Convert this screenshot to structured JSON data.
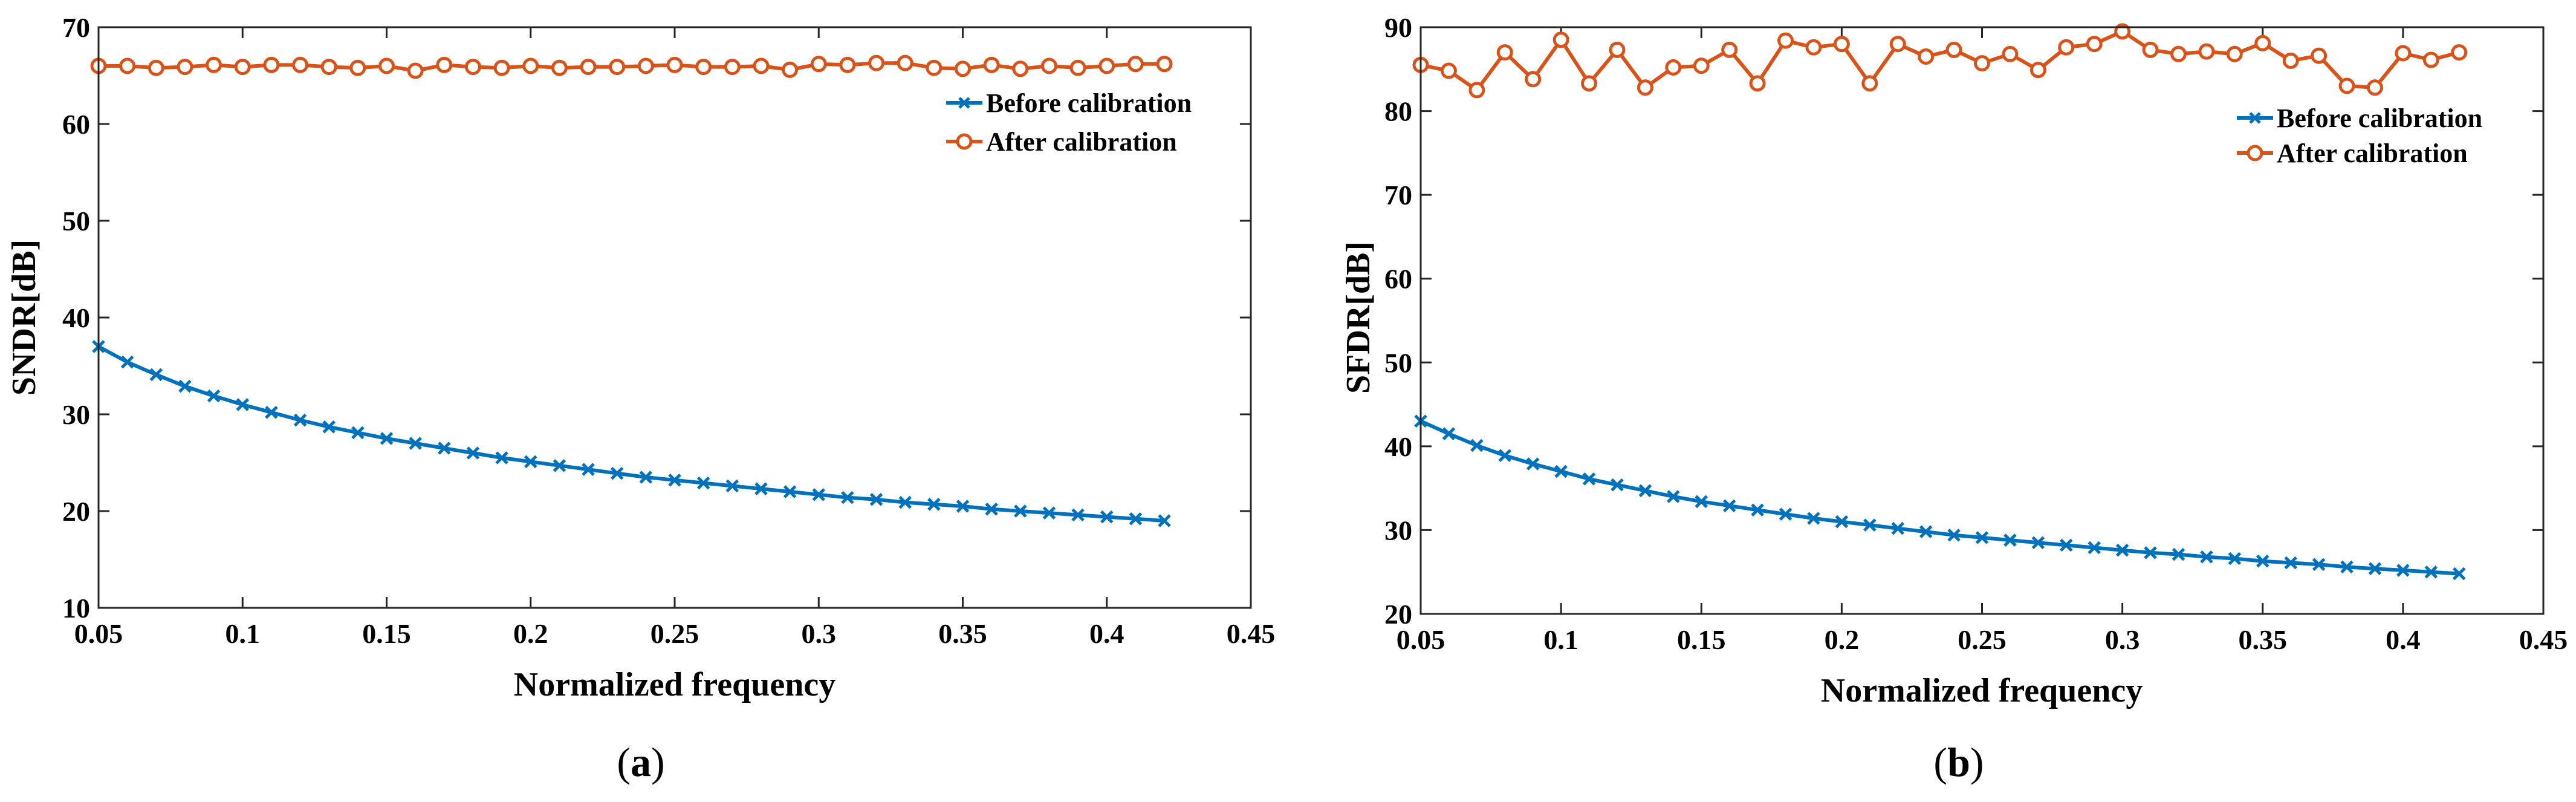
{
  "chart_data": [
    {
      "type": "line",
      "panel": "a",
      "caption": "a",
      "xlabel": "Normalized frequency",
      "ylabel": "SNDR[dB]",
      "xlim": [
        0.05,
        0.45
      ],
      "ylim": [
        10,
        70
      ],
      "xticks": [
        0.05,
        0.1,
        0.15,
        0.2,
        0.25,
        0.3,
        0.35,
        0.4,
        0.45
      ],
      "xtick_labels": [
        "0.05",
        "0.1",
        "0.15",
        "0.2",
        "0.25",
        "0.3",
        "0.35",
        "0.4",
        "0.45"
      ],
      "yticks": [
        10,
        20,
        30,
        40,
        50,
        60,
        70
      ],
      "ytick_labels": [
        "10",
        "20",
        "30",
        "40",
        "50",
        "60",
        "70"
      ],
      "legend_position": "top-right",
      "x": [
        0.05,
        0.06,
        0.07,
        0.08,
        0.09,
        0.1,
        0.11,
        0.12,
        0.13,
        0.14,
        0.15,
        0.16,
        0.17,
        0.18,
        0.19,
        0.2,
        0.21,
        0.22,
        0.23,
        0.24,
        0.25,
        0.26,
        0.27,
        0.28,
        0.29,
        0.3,
        0.31,
        0.32,
        0.33,
        0.34,
        0.35,
        0.36,
        0.37,
        0.38,
        0.39,
        0.4,
        0.41,
        0.42
      ],
      "series": [
        {
          "name": "Before calibration",
          "color": "#0072BD",
          "marker": "x",
          "values": [
            37.0,
            35.4,
            34.1,
            32.9,
            31.9,
            31.0,
            30.2,
            29.4,
            28.7,
            28.1,
            27.5,
            27.0,
            26.5,
            26.0,
            25.5,
            25.1,
            24.7,
            24.3,
            23.9,
            23.5,
            23.2,
            22.9,
            22.6,
            22.3,
            22.0,
            21.7,
            21.4,
            21.2,
            20.9,
            20.7,
            20.5,
            20.2,
            20.0,
            19.8,
            19.6,
            19.4,
            19.2,
            19.0
          ]
        },
        {
          "name": "After calibration",
          "color": "#D95319",
          "marker": "o",
          "values": [
            66.0,
            66.0,
            65.8,
            65.9,
            66.1,
            65.9,
            66.1,
            66.1,
            65.9,
            65.8,
            66.0,
            65.5,
            66.1,
            65.9,
            65.8,
            66.0,
            65.8,
            65.9,
            65.9,
            66.0,
            66.1,
            65.9,
            65.9,
            66.0,
            65.6,
            66.2,
            66.1,
            66.3,
            66.3,
            65.8,
            65.7,
            66.1,
            65.7,
            66.0,
            65.8,
            66.0,
            66.2,
            66.2
          ]
        }
      ]
    },
    {
      "type": "line",
      "panel": "b",
      "caption": "b",
      "xlabel": "Normalized frequency",
      "ylabel": "SFDR[dB]",
      "xlim": [
        0.05,
        0.45
      ],
      "ylim": [
        20,
        90
      ],
      "xticks": [
        0.05,
        0.1,
        0.15,
        0.2,
        0.25,
        0.3,
        0.35,
        0.4,
        0.45
      ],
      "xtick_labels": [
        "0.05",
        "0.1",
        "0.15",
        "0.2",
        "0.25",
        "0.3",
        "0.35",
        "0.4",
        "0.45"
      ],
      "yticks": [
        20,
        30,
        40,
        50,
        60,
        70,
        80,
        90
      ],
      "ytick_labels": [
        "20",
        "30",
        "40",
        "50",
        "60",
        "70",
        "80",
        "90"
      ],
      "legend_position": "top-right",
      "x": [
        0.05,
        0.06,
        0.07,
        0.08,
        0.09,
        0.1,
        0.11,
        0.12,
        0.13,
        0.14,
        0.15,
        0.16,
        0.17,
        0.18,
        0.19,
        0.2,
        0.21,
        0.22,
        0.23,
        0.24,
        0.25,
        0.26,
        0.27,
        0.28,
        0.29,
        0.3,
        0.31,
        0.32,
        0.33,
        0.34,
        0.35,
        0.36,
        0.37,
        0.38,
        0.39,
        0.4,
        0.41,
        0.42
      ],
      "series": [
        {
          "name": "Before calibration",
          "color": "#0072BD",
          "marker": "x",
          "values": [
            43.0,
            41.5,
            40.1,
            38.9,
            37.9,
            37.0,
            36.1,
            35.4,
            34.7,
            34.0,
            33.4,
            32.9,
            32.4,
            31.9,
            31.4,
            31.0,
            30.6,
            30.2,
            29.8,
            29.4,
            29.1,
            28.8,
            28.5,
            28.2,
            27.9,
            27.6,
            27.3,
            27.1,
            26.8,
            26.6,
            26.3,
            26.1,
            25.9,
            25.6,
            25.4,
            25.2,
            25.0,
            24.8
          ]
        },
        {
          "name": "After calibration",
          "color": "#D95319",
          "marker": "o",
          "values": [
            85.5,
            84.8,
            82.5,
            87.0,
            83.8,
            88.5,
            83.3,
            87.3,
            82.8,
            85.2,
            85.4,
            87.3,
            83.3,
            88.4,
            87.6,
            88.0,
            83.3,
            88.0,
            86.5,
            87.3,
            85.7,
            86.8,
            84.9,
            87.6,
            88.0,
            89.5,
            87.3,
            86.8,
            87.1,
            86.8,
            88.1,
            86.0,
            86.6,
            83.0,
            82.8,
            86.9,
            86.1,
            87.0
          ]
        }
      ]
    }
  ]
}
